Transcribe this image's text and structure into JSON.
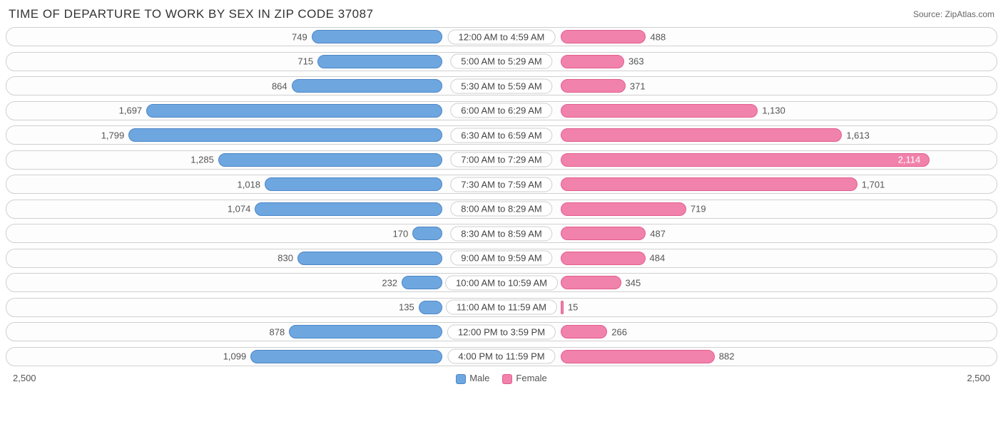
{
  "title": "TIME OF DEPARTURE TO WORK BY SEX IN ZIP CODE 37087",
  "source": "Source: ZipAtlas.com",
  "axis_max": 2500,
  "axis_label_left": "2,500",
  "axis_label_right": "2,500",
  "colors": {
    "male_fill": "#6ea6e0",
    "male_border": "#4d86c6",
    "female_fill": "#f182ab",
    "female_border": "#e35d8f",
    "row_border": "#d0d0d0",
    "text": "#555555",
    "background": "#ffffff"
  },
  "legend": {
    "male": "Male",
    "female": "Female"
  },
  "rows": [
    {
      "label": "12:00 AM to 4:59 AM",
      "male": 749,
      "female": 488,
      "male_fmt": "749",
      "female_fmt": "488"
    },
    {
      "label": "5:00 AM to 5:29 AM",
      "male": 715,
      "female": 363,
      "male_fmt": "715",
      "female_fmt": "363"
    },
    {
      "label": "5:30 AM to 5:59 AM",
      "male": 864,
      "female": 371,
      "male_fmt": "864",
      "female_fmt": "371"
    },
    {
      "label": "6:00 AM to 6:29 AM",
      "male": 1697,
      "female": 1130,
      "male_fmt": "1,697",
      "female_fmt": "1,130"
    },
    {
      "label": "6:30 AM to 6:59 AM",
      "male": 1799,
      "female": 1613,
      "male_fmt": "1,799",
      "female_fmt": "1,613"
    },
    {
      "label": "7:00 AM to 7:29 AM",
      "male": 1285,
      "female": 2114,
      "male_fmt": "1,285",
      "female_fmt": "2,114"
    },
    {
      "label": "7:30 AM to 7:59 AM",
      "male": 1018,
      "female": 1701,
      "male_fmt": "1,018",
      "female_fmt": "1,701"
    },
    {
      "label": "8:00 AM to 8:29 AM",
      "male": 1074,
      "female": 719,
      "male_fmt": "1,074",
      "female_fmt": "719"
    },
    {
      "label": "8:30 AM to 8:59 AM",
      "male": 170,
      "female": 487,
      "male_fmt": "170",
      "female_fmt": "487"
    },
    {
      "label": "9:00 AM to 9:59 AM",
      "male": 830,
      "female": 484,
      "male_fmt": "830",
      "female_fmt": "484"
    },
    {
      "label": "10:00 AM to 10:59 AM",
      "male": 232,
      "female": 345,
      "male_fmt": "232",
      "female_fmt": "345"
    },
    {
      "label": "11:00 AM to 11:59 AM",
      "male": 135,
      "female": 15,
      "male_fmt": "135",
      "female_fmt": "15"
    },
    {
      "label": "12:00 PM to 3:59 PM",
      "male": 878,
      "female": 266,
      "male_fmt": "878",
      "female_fmt": "266"
    },
    {
      "label": "4:00 PM to 11:59 PM",
      "male": 1099,
      "female": 882,
      "male_fmt": "1,099",
      "female_fmt": "882"
    }
  ]
}
